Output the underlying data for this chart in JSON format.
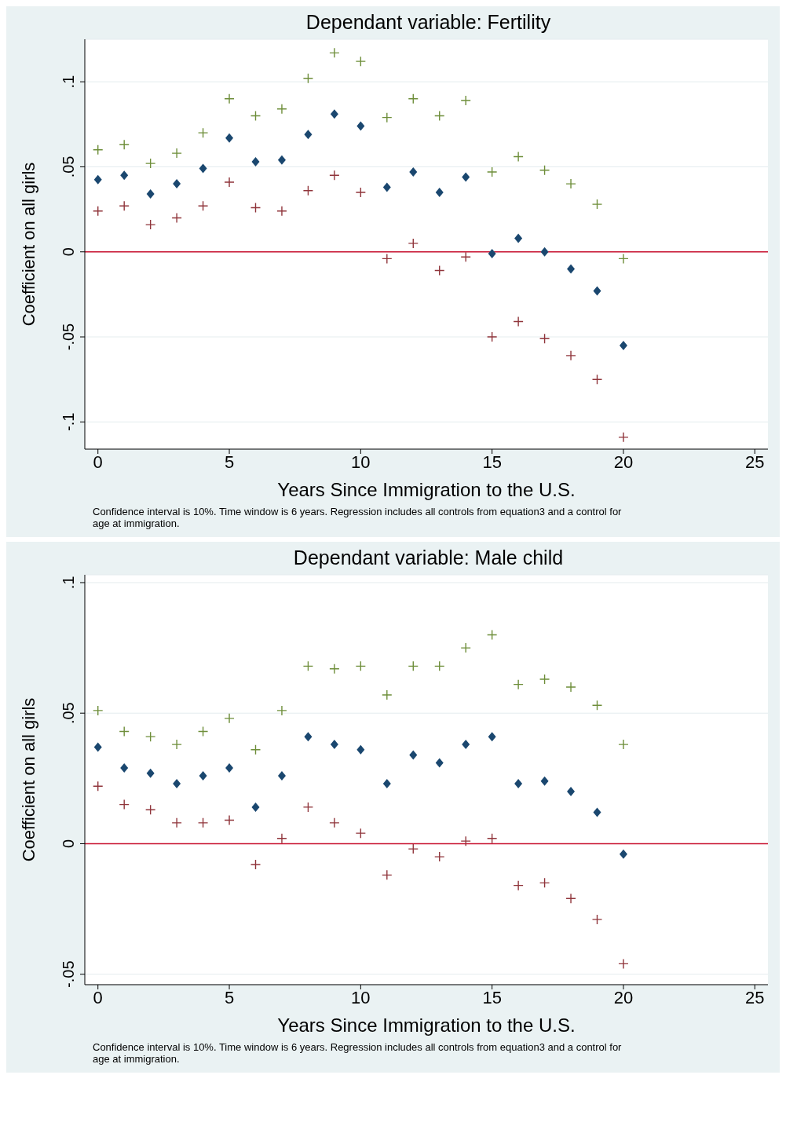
{
  "chart_data": [
    {
      "type": "scatter",
      "title": "Dependant variable: Fertility",
      "xlabel": "Years Since Immigration to the U.S.",
      "ylabel": "Coefficient on all girls",
      "x": [
        0,
        1,
        2,
        3,
        4,
        5,
        6,
        7,
        8,
        9,
        10,
        11,
        12,
        13,
        14,
        15,
        16,
        17,
        18,
        19,
        20
      ],
      "series": [
        {
          "color": "#1a476f",
          "marker": "diamond",
          "values": [
            0.0425,
            0.045,
            0.034,
            0.04,
            0.049,
            0.067,
            0.053,
            0.054,
            0.069,
            0.081,
            0.074,
            0.038,
            0.047,
            0.035,
            0.044,
            -0.001,
            0.008,
            0.0,
            -0.01,
            -0.023,
            -0.055
          ]
        },
        {
          "color": "#6e8e3a",
          "marker": "cross",
          "values": [
            0.06,
            0.063,
            0.052,
            0.058,
            0.07,
            0.09,
            0.08,
            0.084,
            0.102,
            0.117,
            0.112,
            0.079,
            0.09,
            0.08,
            0.089,
            0.047,
            0.056,
            0.048,
            0.04,
            0.028,
            -0.004
          ]
        },
        {
          "color": "#90353b",
          "marker": "cross",
          "values": [
            0.024,
            0.027,
            0.016,
            0.02,
            0.027,
            0.041,
            0.026,
            0.024,
            0.036,
            0.045,
            0.035,
            -0.004,
            0.005,
            -0.011,
            -0.003,
            -0.05,
            -0.041,
            -0.051,
            -0.061,
            -0.075,
            -0.109
          ]
        }
      ],
      "xlim": [
        -0.5,
        25.5
      ],
      "xticks": [
        0,
        5,
        10,
        15,
        20,
        25
      ],
      "ylim": [
        -0.116,
        0.125
      ],
      "yticks": [
        {
          "value": -0.1,
          "label": "-.1"
        },
        {
          "value": -0.05,
          "label": "-.05"
        },
        0,
        {
          "value": 0.05,
          "label": ".05"
        },
        {
          "value": 0.1,
          "label": ".1"
        }
      ],
      "grid": "y",
      "legend": false,
      "ref_lines": [
        {
          "axis": "y",
          "value": 0,
          "color": "#c8102e"
        }
      ],
      "annotations": [
        "Confidence interval is 10%. Time window is 6 years. Regression includes all controls from equation3 and a control for age at immigration."
      ]
    },
    {
      "type": "scatter",
      "title": "Dependant variable: Male child",
      "xlabel": "Years Since Immigration to the U.S.",
      "ylabel": "Coefficient on all girls",
      "x": [
        0,
        1,
        2,
        3,
        4,
        5,
        6,
        7,
        8,
        9,
        10,
        11,
        12,
        13,
        14,
        15,
        16,
        17,
        18,
        19,
        20
      ],
      "series": [
        {
          "color": "#1a476f",
          "marker": "diamond",
          "values": [
            0.037,
            0.029,
            0.027,
            0.023,
            0.026,
            0.029,
            0.014,
            0.026,
            0.041,
            0.038,
            0.036,
            0.023,
            0.034,
            0.031,
            0.038,
            0.041,
            0.023,
            0.024,
            0.02,
            0.012,
            -0.004
          ]
        },
        {
          "color": "#6e8e3a",
          "marker": "cross",
          "values": [
            0.051,
            0.043,
            0.041,
            0.038,
            0.043,
            0.048,
            0.036,
            0.051,
            0.068,
            0.067,
            0.068,
            0.057,
            0.068,
            0.068,
            0.075,
            0.08,
            0.061,
            0.063,
            0.06,
            0.053,
            0.038
          ]
        },
        {
          "color": "#90353b",
          "marker": "cross",
          "values": [
            0.022,
            0.015,
            0.013,
            0.008,
            0.008,
            0.009,
            -0.008,
            0.002,
            0.014,
            0.008,
            0.004,
            -0.012,
            -0.002,
            -0.005,
            0.001,
            0.002,
            -0.016,
            -0.015,
            -0.021,
            -0.029,
            -0.046
          ]
        }
      ],
      "xlim": [
        -0.5,
        25.5
      ],
      "xticks": [
        0,
        5,
        10,
        15,
        20,
        25
      ],
      "ylim": [
        -0.054,
        0.103
      ],
      "yticks": [
        {
          "value": -0.05,
          "label": "-.05"
        },
        0,
        {
          "value": 0.05,
          "label": ".05"
        },
        {
          "value": 0.1,
          "label": ".1"
        }
      ],
      "grid": "y",
      "legend": false,
      "ref_lines": [
        {
          "axis": "y",
          "value": 0,
          "color": "#c8102e"
        }
      ],
      "annotations": [
        "Confidence interval is 10%. Time window is 6 years. Regression includes all controls from equation3 and a control for age at immigration."
      ]
    }
  ]
}
